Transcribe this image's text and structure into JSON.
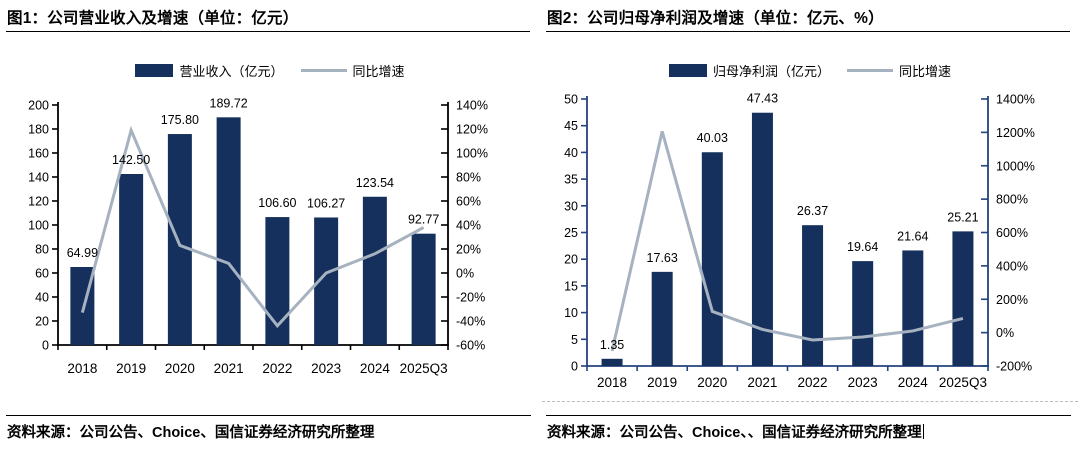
{
  "colors": {
    "bar": "#15305c",
    "line": "#a7b2c1",
    "axis_left_chart": "#000000",
    "axis_right_chart": "#24427c",
    "text": "#000000",
    "rule": "#000000",
    "dashed_divider": "#bdbdbd"
  },
  "figures": [
    {
      "title": "图1：公司营业收入及增速（单位：亿元）",
      "legend_bar": "营业收入（亿元）",
      "legend_line": "同比增速",
      "source": "资料来源：公司公告、Choice、国信证券经济研究所整理"
    },
    {
      "title": "图2：公司归母净利润及增速（单位：亿元、%）",
      "legend_bar": "归母净利润（亿元）",
      "legend_line": "同比增速",
      "source": "资料来源：公司公告、Choice、、国信证券经济研究所整理"
    }
  ],
  "chart_data": [
    {
      "type": "bar",
      "combo": "bar+line",
      "title": "图1：公司营业收入及增速（单位：亿元）",
      "categories": [
        "2018",
        "2019",
        "2020",
        "2021",
        "2022",
        "2023",
        "2024",
        "2025Q3"
      ],
      "series": [
        {
          "name": "营业收入（亿元）",
          "type": "bar",
          "axis": "left",
          "values": [
            64.99,
            142.5,
            175.8,
            189.72,
            106.6,
            106.27,
            123.54,
            92.77
          ],
          "labels": [
            "64.99",
            "142.50",
            "175.80",
            "189.72",
            "106.60",
            "106.27",
            "123.54",
            "92.77"
          ]
        },
        {
          "name": "同比增速",
          "type": "line",
          "axis": "right",
          "unit": "%",
          "values": [
            -33,
            119,
            23,
            8,
            -44,
            0,
            16,
            38
          ]
        }
      ],
      "left_axis": {
        "min": 0,
        "max": 200,
        "step": 20
      },
      "right_axis": {
        "min": -60,
        "max": 140,
        "step": 20,
        "suffix": "%"
      },
      "legend_position": "top",
      "grid": false
    },
    {
      "type": "bar",
      "combo": "bar+line",
      "title": "图2：公司归母净利润及增速（单位：亿元、%）",
      "categories": [
        "2018",
        "2019",
        "2020",
        "2021",
        "2022",
        "2023",
        "2024",
        "2025Q3"
      ],
      "series": [
        {
          "name": "归母净利润（亿元）",
          "type": "bar",
          "axis": "left",
          "values": [
            1.35,
            17.63,
            40.03,
            47.43,
            26.37,
            19.64,
            21.64,
            25.21
          ],
          "labels": [
            "1.35",
            "17.63",
            "40.03",
            "47.43",
            "26.37",
            "19.64",
            "21.64",
            "25.21"
          ]
        },
        {
          "name": "同比增速",
          "type": "line",
          "axis": "right",
          "unit": "%",
          "values": [
            -110,
            1206,
            127,
            19,
            -44,
            -26,
            10,
            85
          ]
        }
      ],
      "left_axis": {
        "min": 0,
        "max": 50,
        "step": 5
      },
      "right_axis": {
        "min": -200,
        "max": 1400,
        "step": 200,
        "suffix": "%"
      },
      "legend_position": "top",
      "grid": false
    }
  ]
}
